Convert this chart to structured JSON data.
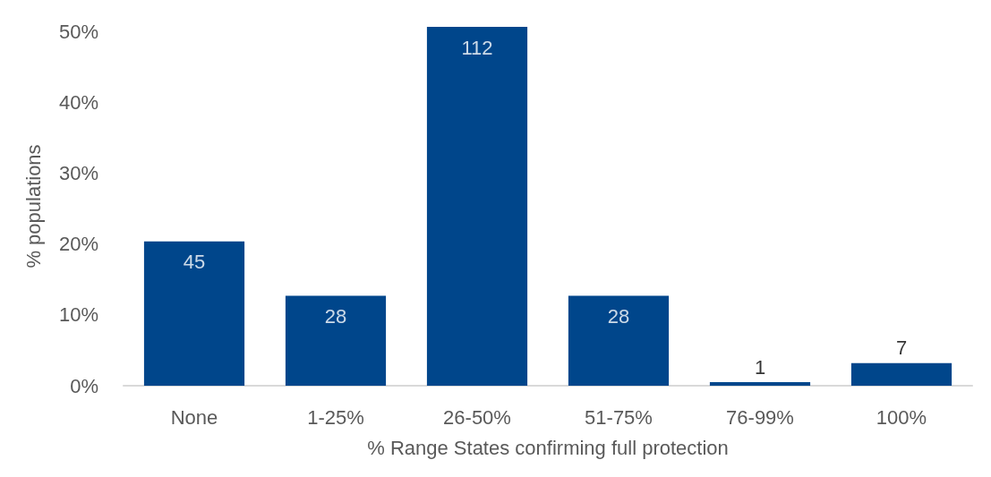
{
  "chart_data": {
    "type": "bar",
    "xlabel": "% Range States confirming full protection",
    "ylabel": "% populations",
    "categories": [
      "None",
      "1-25%",
      "26-50%",
      "51-75%",
      "76-99%",
      "100%"
    ],
    "values": [
      20.4,
      12.7,
      50.7,
      12.7,
      0.5,
      3.2
    ],
    "annotations": [
      {
        "text": "45",
        "x": "None",
        "y": 20.4
      },
      {
        "text": "28",
        "x": "1-25%",
        "y": 12.7
      },
      {
        "text": "112",
        "x": "26-50%",
        "y": 50.7
      },
      {
        "text": "28",
        "x": "51-75%",
        "y": 12.7
      },
      {
        "text": "1",
        "x": "76-99%",
        "y": 0.5
      },
      {
        "text": "7",
        "x": "100%",
        "y": 3.2
      }
    ],
    "color": "#00468b",
    "ylim": [
      0,
      50.7
    ],
    "yticks": [
      {
        "value": 0,
        "label": "0%"
      },
      {
        "value": 10,
        "label": "10%"
      },
      {
        "value": 20,
        "label": "20%"
      },
      {
        "value": 30,
        "label": "30%"
      },
      {
        "value": 40,
        "label": "40%"
      },
      {
        "value": 50,
        "label": "50%"
      }
    ],
    "grid": false
  }
}
